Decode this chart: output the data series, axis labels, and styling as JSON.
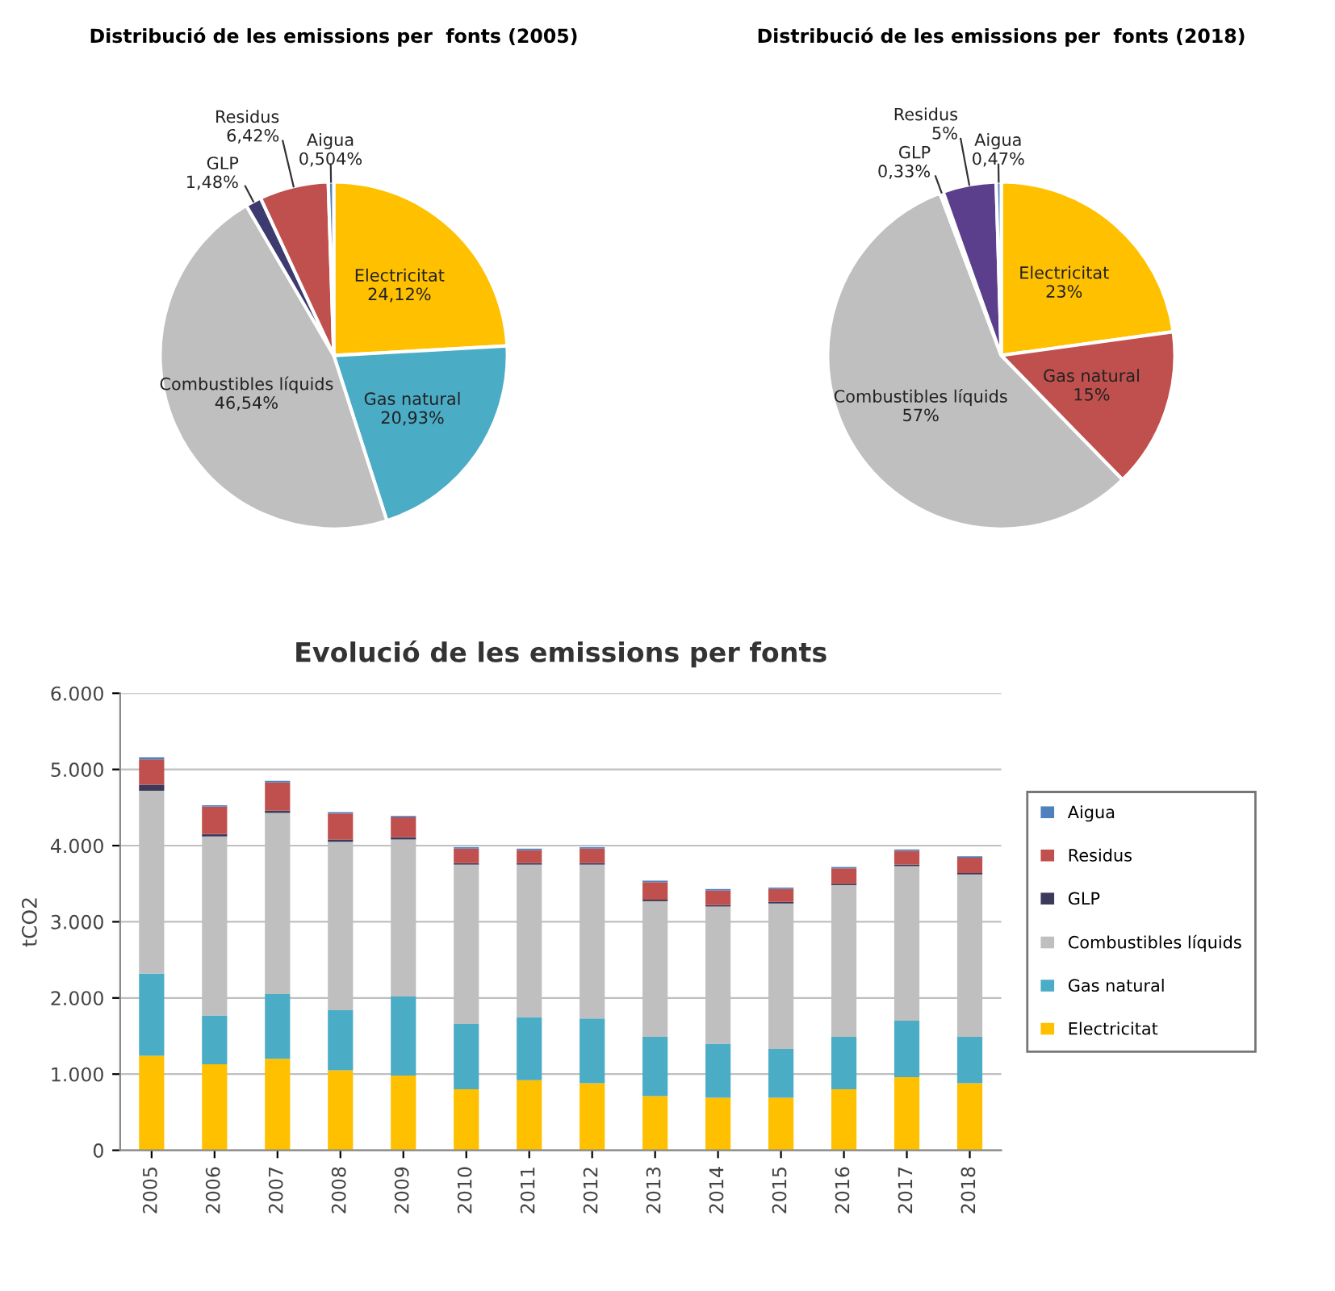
{
  "chart_data": [
    {
      "type": "pie",
      "title": "Distribució de les emissions per  fonts (2005)",
      "categories": [
        "Electricitat",
        "Gas natural",
        "Combustibles líquids",
        "GLP",
        "Residus",
        "Aigua"
      ],
      "values": [
        24.12,
        20.93,
        46.54,
        1.48,
        6.42,
        0.504
      ],
      "value_labels": [
        "24,12%",
        "20,93%",
        "46,54%",
        "1,48%",
        "6,42%",
        "0,504%"
      ],
      "colors": [
        "#ffc000",
        "#4bacc6",
        "#bfbfbf",
        "#3c3a6e",
        "#c0504d",
        "#4f81bd"
      ]
    },
    {
      "type": "pie",
      "title": "Distribució de les emissions per  fonts (2018)",
      "categories": [
        "Electricitat",
        "Gas natural",
        "Combustibles líquids",
        "GLP",
        "Residus",
        "Aigua"
      ],
      "values": [
        23,
        15,
        57,
        0.33,
        5,
        0.47
      ],
      "value_labels": [
        "23%",
        "15%",
        "57%",
        "0,33%",
        "5%",
        "0,47%"
      ],
      "colors": [
        "#ffc000",
        "#c0504d",
        "#bfbfbf",
        "#4472c4",
        "#5b3f8c",
        "#4f81bd"
      ]
    },
    {
      "type": "bar",
      "title": "Evolució de les emissions per fonts",
      "ylabel": "tCO2",
      "stacked": true,
      "grid": "y",
      "legend": "right",
      "categories": [
        "2005",
        "2006",
        "2007",
        "2008",
        "2009",
        "2010",
        "2011",
        "2012",
        "2013",
        "2014",
        "2015",
        "2016",
        "2017",
        "2018"
      ],
      "ylim": [
        0,
        6000
      ],
      "yticks": [
        0,
        {
          "value": 1000,
          "label": "1.000"
        },
        {
          "value": 2000,
          "label": "2.000"
        },
        {
          "value": 3000,
          "label": "3.000"
        },
        {
          "value": 4000,
          "label": "4.000"
        },
        {
          "value": 5000,
          "label": "5.000"
        },
        {
          "value": 6000,
          "label": "6.000"
        }
      ],
      "series": [
        {
          "name": "Electricitat",
          "color": "#ffc000",
          "values": [
            1240,
            1130,
            1200,
            1050,
            980,
            800,
            920,
            880,
            710,
            690,
            690,
            800,
            960,
            880
          ]
        },
        {
          "name": "Gas natural",
          "color": "#4bacc6",
          "values": [
            1080,
            640,
            850,
            790,
            1040,
            860,
            830,
            850,
            780,
            710,
            640,
            690,
            740,
            610
          ]
        },
        {
          "name": "Combustibles líquids",
          "color": "#bfbfbf",
          "values": [
            2400,
            2350,
            2380,
            2210,
            2060,
            2090,
            2000,
            2020,
            1780,
            1800,
            1910,
            1990,
            2030,
            2130
          ]
        },
        {
          "name": "GLP",
          "color": "#3c3a5a",
          "values": [
            80,
            30,
            30,
            30,
            30,
            20,
            20,
            20,
            20,
            20,
            20,
            20,
            20,
            20
          ]
        },
        {
          "name": "Residus",
          "color": "#c0504d",
          "values": [
            330,
            360,
            370,
            340,
            260,
            190,
            170,
            190,
            230,
            190,
            170,
            200,
            180,
            200
          ]
        },
        {
          "name": "Aigua",
          "color": "#4f81bd",
          "values": [
            30,
            20,
            20,
            20,
            20,
            20,
            20,
            20,
            20,
            20,
            20,
            20,
            20,
            20
          ]
        }
      ]
    }
  ]
}
